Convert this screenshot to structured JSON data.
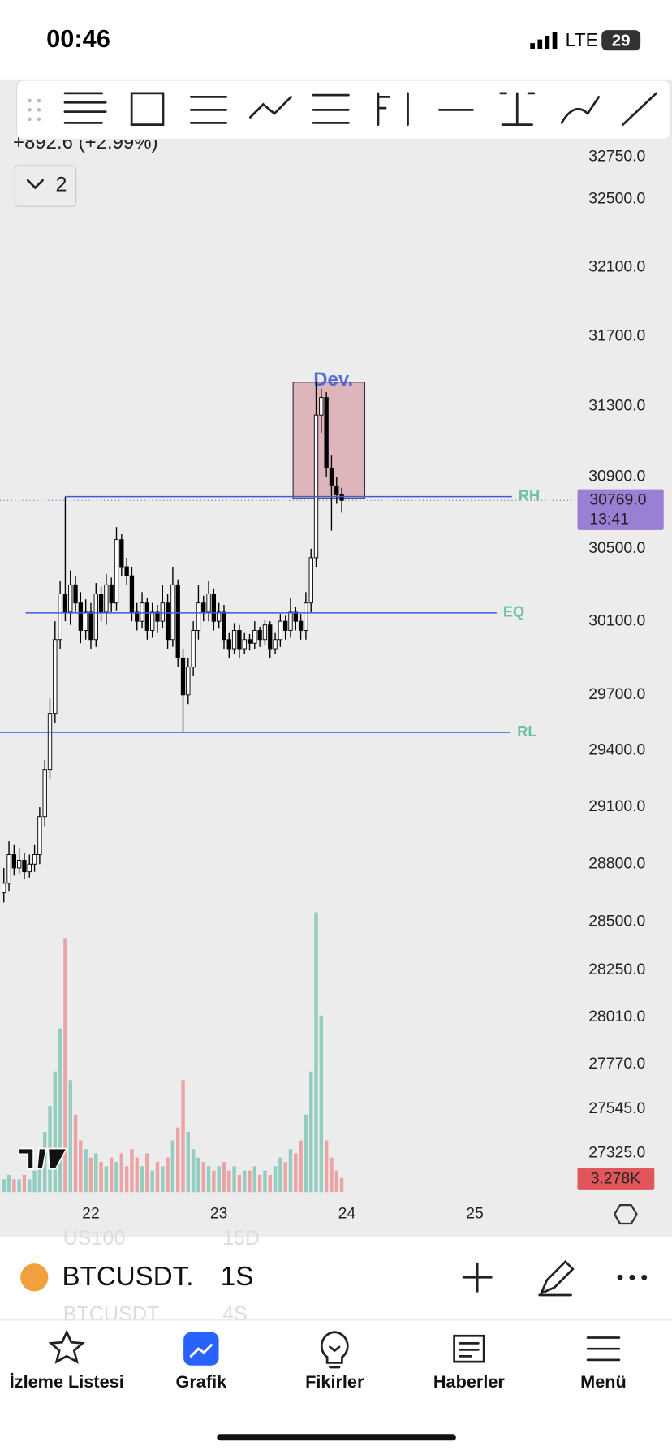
{
  "status_bar": {
    "time": "00:46",
    "network": "LTE",
    "battery": "29"
  },
  "header": {
    "change": "+892.6 (+2.99%)",
    "indicator_count": "2"
  },
  "chart_data": {
    "type": "candlestick",
    "log_scale": true,
    "x": [
      21.32,
      21.36,
      21.4,
      21.44,
      21.48,
      21.52,
      21.56,
      21.6,
      21.64,
      21.68,
      21.72,
      21.76,
      21.8,
      21.84,
      21.88,
      21.92,
      21.96,
      22.0,
      22.04,
      22.08,
      22.12,
      22.16,
      22.2,
      22.24,
      22.28,
      22.32,
      22.36,
      22.4,
      22.44,
      22.48,
      22.52,
      22.56,
      22.6,
      22.64,
      22.68,
      22.72,
      22.76,
      22.8,
      22.84,
      22.88,
      22.92,
      22.96,
      23.0,
      23.04,
      23.08,
      23.12,
      23.16,
      23.2,
      23.24,
      23.28,
      23.32,
      23.36,
      23.4,
      23.44,
      23.48,
      23.52,
      23.56,
      23.6,
      23.64,
      23.68,
      23.72,
      23.76,
      23.8,
      23.84,
      23.88,
      23.92,
      23.96
    ],
    "open": [
      28650,
      28700,
      28850,
      28780,
      28820,
      28760,
      28800,
      28850,
      29050,
      29300,
      29600,
      30000,
      30250,
      30150,
      30300,
      30200,
      30050,
      30150,
      30000,
      30250,
      30150,
      30300,
      30200,
      30550,
      30400,
      30350,
      30150,
      30100,
      30200,
      30050,
      30150,
      30100,
      30200,
      30000,
      30300,
      29900,
      29700,
      29850,
      30050,
      30200,
      30150,
      30250,
      30100,
      30150,
      30000,
      29950,
      30050,
      29950,
      30000,
      29980,
      30050,
      30000,
      30080,
      29950,
      30000,
      30100,
      30050,
      30150,
      30100,
      30050,
      30200,
      30450,
      31250,
      31350,
      30950,
      30850,
      30800
    ],
    "high": [
      28780,
      28920,
      28900,
      28880,
      28860,
      28850,
      28900,
      29100,
      29350,
      29680,
      30100,
      30320,
      30790,
      30380,
      30350,
      30260,
      30220,
      30200,
      30310,
      30290,
      30360,
      30340,
      30620,
      30580,
      30450,
      30400,
      30200,
      30260,
      30230,
      30200,
      30190,
      30300,
      30250,
      30400,
      30330,
      29950,
      29900,
      30100,
      30300,
      30240,
      30320,
      30280,
      30200,
      30190,
      30040,
      30090,
      30080,
      30040,
      30030,
      30100,
      30070,
      30110,
      30100,
      30040,
      30140,
      30130,
      30230,
      30180,
      30140,
      30260,
      30500,
      31437,
      31400,
      31380,
      31020,
      30900,
      30840
    ],
    "low": [
      28600,
      28660,
      28740,
      28750,
      28720,
      28730,
      28760,
      28800,
      29000,
      29250,
      29550,
      29950,
      30100,
      30080,
      30150,
      29980,
      30000,
      29950,
      29960,
      30100,
      30080,
      30150,
      30160,
      30350,
      30300,
      30100,
      30050,
      30060,
      30000,
      30010,
      30040,
      30060,
      29950,
      29960,
      29850,
      29498,
      29650,
      29800,
      30000,
      30100,
      30100,
      30050,
      30060,
      29950,
      29900,
      29920,
      29900,
      29920,
      29940,
      29950,
      29960,
      29970,
      29900,
      29920,
      29960,
      30000,
      30010,
      30050,
      30000,
      30000,
      30150,
      30400,
      31150,
      30900,
      30600,
      30750,
      30700
    ],
    "close": [
      28700,
      28850,
      28780,
      28820,
      28760,
      28800,
      28850,
      29050,
      29300,
      29600,
      30000,
      30250,
      30150,
      30300,
      30200,
      30050,
      30150,
      30000,
      30250,
      30150,
      30300,
      30200,
      30550,
      30400,
      30350,
      30150,
      30100,
      30200,
      30050,
      30150,
      30100,
      30200,
      30000,
      30300,
      29900,
      29700,
      29850,
      30050,
      30200,
      30150,
      30250,
      30100,
      30150,
      30000,
      29950,
      30050,
      29950,
      30000,
      29980,
      30050,
      30000,
      30080,
      29950,
      30000,
      30100,
      30050,
      30150,
      30100,
      30050,
      30200,
      30450,
      31250,
      31350,
      30950,
      30850,
      30800,
      30769
    ],
    "volume": [
      3,
      4,
      3,
      3,
      4,
      3,
      5,
      9,
      14,
      20,
      28,
      38,
      59,
      26,
      18,
      12,
      10,
      8,
      9,
      7,
      6,
      8,
      7,
      9,
      6,
      10,
      8,
      6,
      9,
      5,
      7,
      6,
      8,
      12,
      15,
      26,
      14,
      10,
      8,
      7,
      6,
      5,
      6,
      7,
      5,
      6,
      4,
      5,
      5,
      6,
      4,
      5,
      4,
      6,
      8,
      7,
      10,
      9,
      12,
      18,
      28,
      65,
      41,
      12,
      8,
      5,
      3.278
    ],
    "volume_lim": [
      0,
      70
    ],
    "up_color": "#ffffff",
    "down_color": "#000000",
    "volume_up_color": "#93cdc0",
    "volume_down_color": "#eba3a3",
    "xlim": [
      21.29,
      25.78
    ],
    "xticks": [
      22,
      23,
      24,
      25
    ],
    "ylim": [
      27110,
      32855
    ],
    "yticks": [
      {
        "value": 32750,
        "label": "32750.0"
      },
      {
        "value": 32500,
        "label": "32500.0"
      },
      {
        "value": 32100,
        "label": "32100.0"
      },
      {
        "value": 31700,
        "label": "31700.0"
      },
      {
        "value": 31300,
        "label": "31300.0"
      },
      {
        "value": 30900,
        "label": "30900.0"
      },
      {
        "value": 30500,
        "label": "30500.0"
      },
      {
        "value": 30100,
        "label": "30100.0"
      },
      {
        "value": 29700,
        "label": "29700.0"
      },
      {
        "value": 29400,
        "label": "29400.0"
      },
      {
        "value": 29100,
        "label": "29100.0"
      },
      {
        "value": 28800,
        "label": "28800.0"
      },
      {
        "value": 28500,
        "label": "28500.0"
      },
      {
        "value": 28250,
        "label": "28250.0"
      },
      {
        "value": 28010,
        "label": "28010.0"
      },
      {
        "value": 27770,
        "label": "27770.0"
      },
      {
        "value": 27545,
        "label": "27545.0"
      },
      {
        "value": 27325,
        "label": "27325.0"
      }
    ],
    "levels": [
      {
        "name": "RH",
        "value": 30790,
        "x": [
          21.8,
          25.29
        ]
      },
      {
        "name": "EQ",
        "value": 30146,
        "x": [
          21.49,
          25.17
        ]
      },
      {
        "name": "RL",
        "value": 29498,
        "x": [
          21.29,
          25.28
        ]
      }
    ],
    "level_color": "#3b5bdb",
    "level_label_color": "#6cbfa8",
    "zone": {
      "label": "Dev.",
      "x": [
        23.58,
        24.14
      ],
      "y": [
        30780,
        31437
      ],
      "color": "#dba8ae"
    },
    "last_price": {
      "value": 30769,
      "label": "30769.0",
      "countdown": "13:41",
      "color": "#9b7fd4"
    },
    "last_volume": {
      "value": 3.278,
      "label": "3.278K",
      "color": "#e0565b"
    }
  },
  "symbol_bar": {
    "symbol": "BTCUSDT.",
    "interval": "1S",
    "ghost_above": [
      "US100",
      "15D"
    ],
    "ghost_below": [
      "BTCUSDT",
      "4S"
    ]
  },
  "tab_bar": {
    "tabs": [
      "İzleme Listesi",
      "Grafik",
      "Fikirler",
      "Haberler",
      "Menü"
    ],
    "active": 1
  }
}
